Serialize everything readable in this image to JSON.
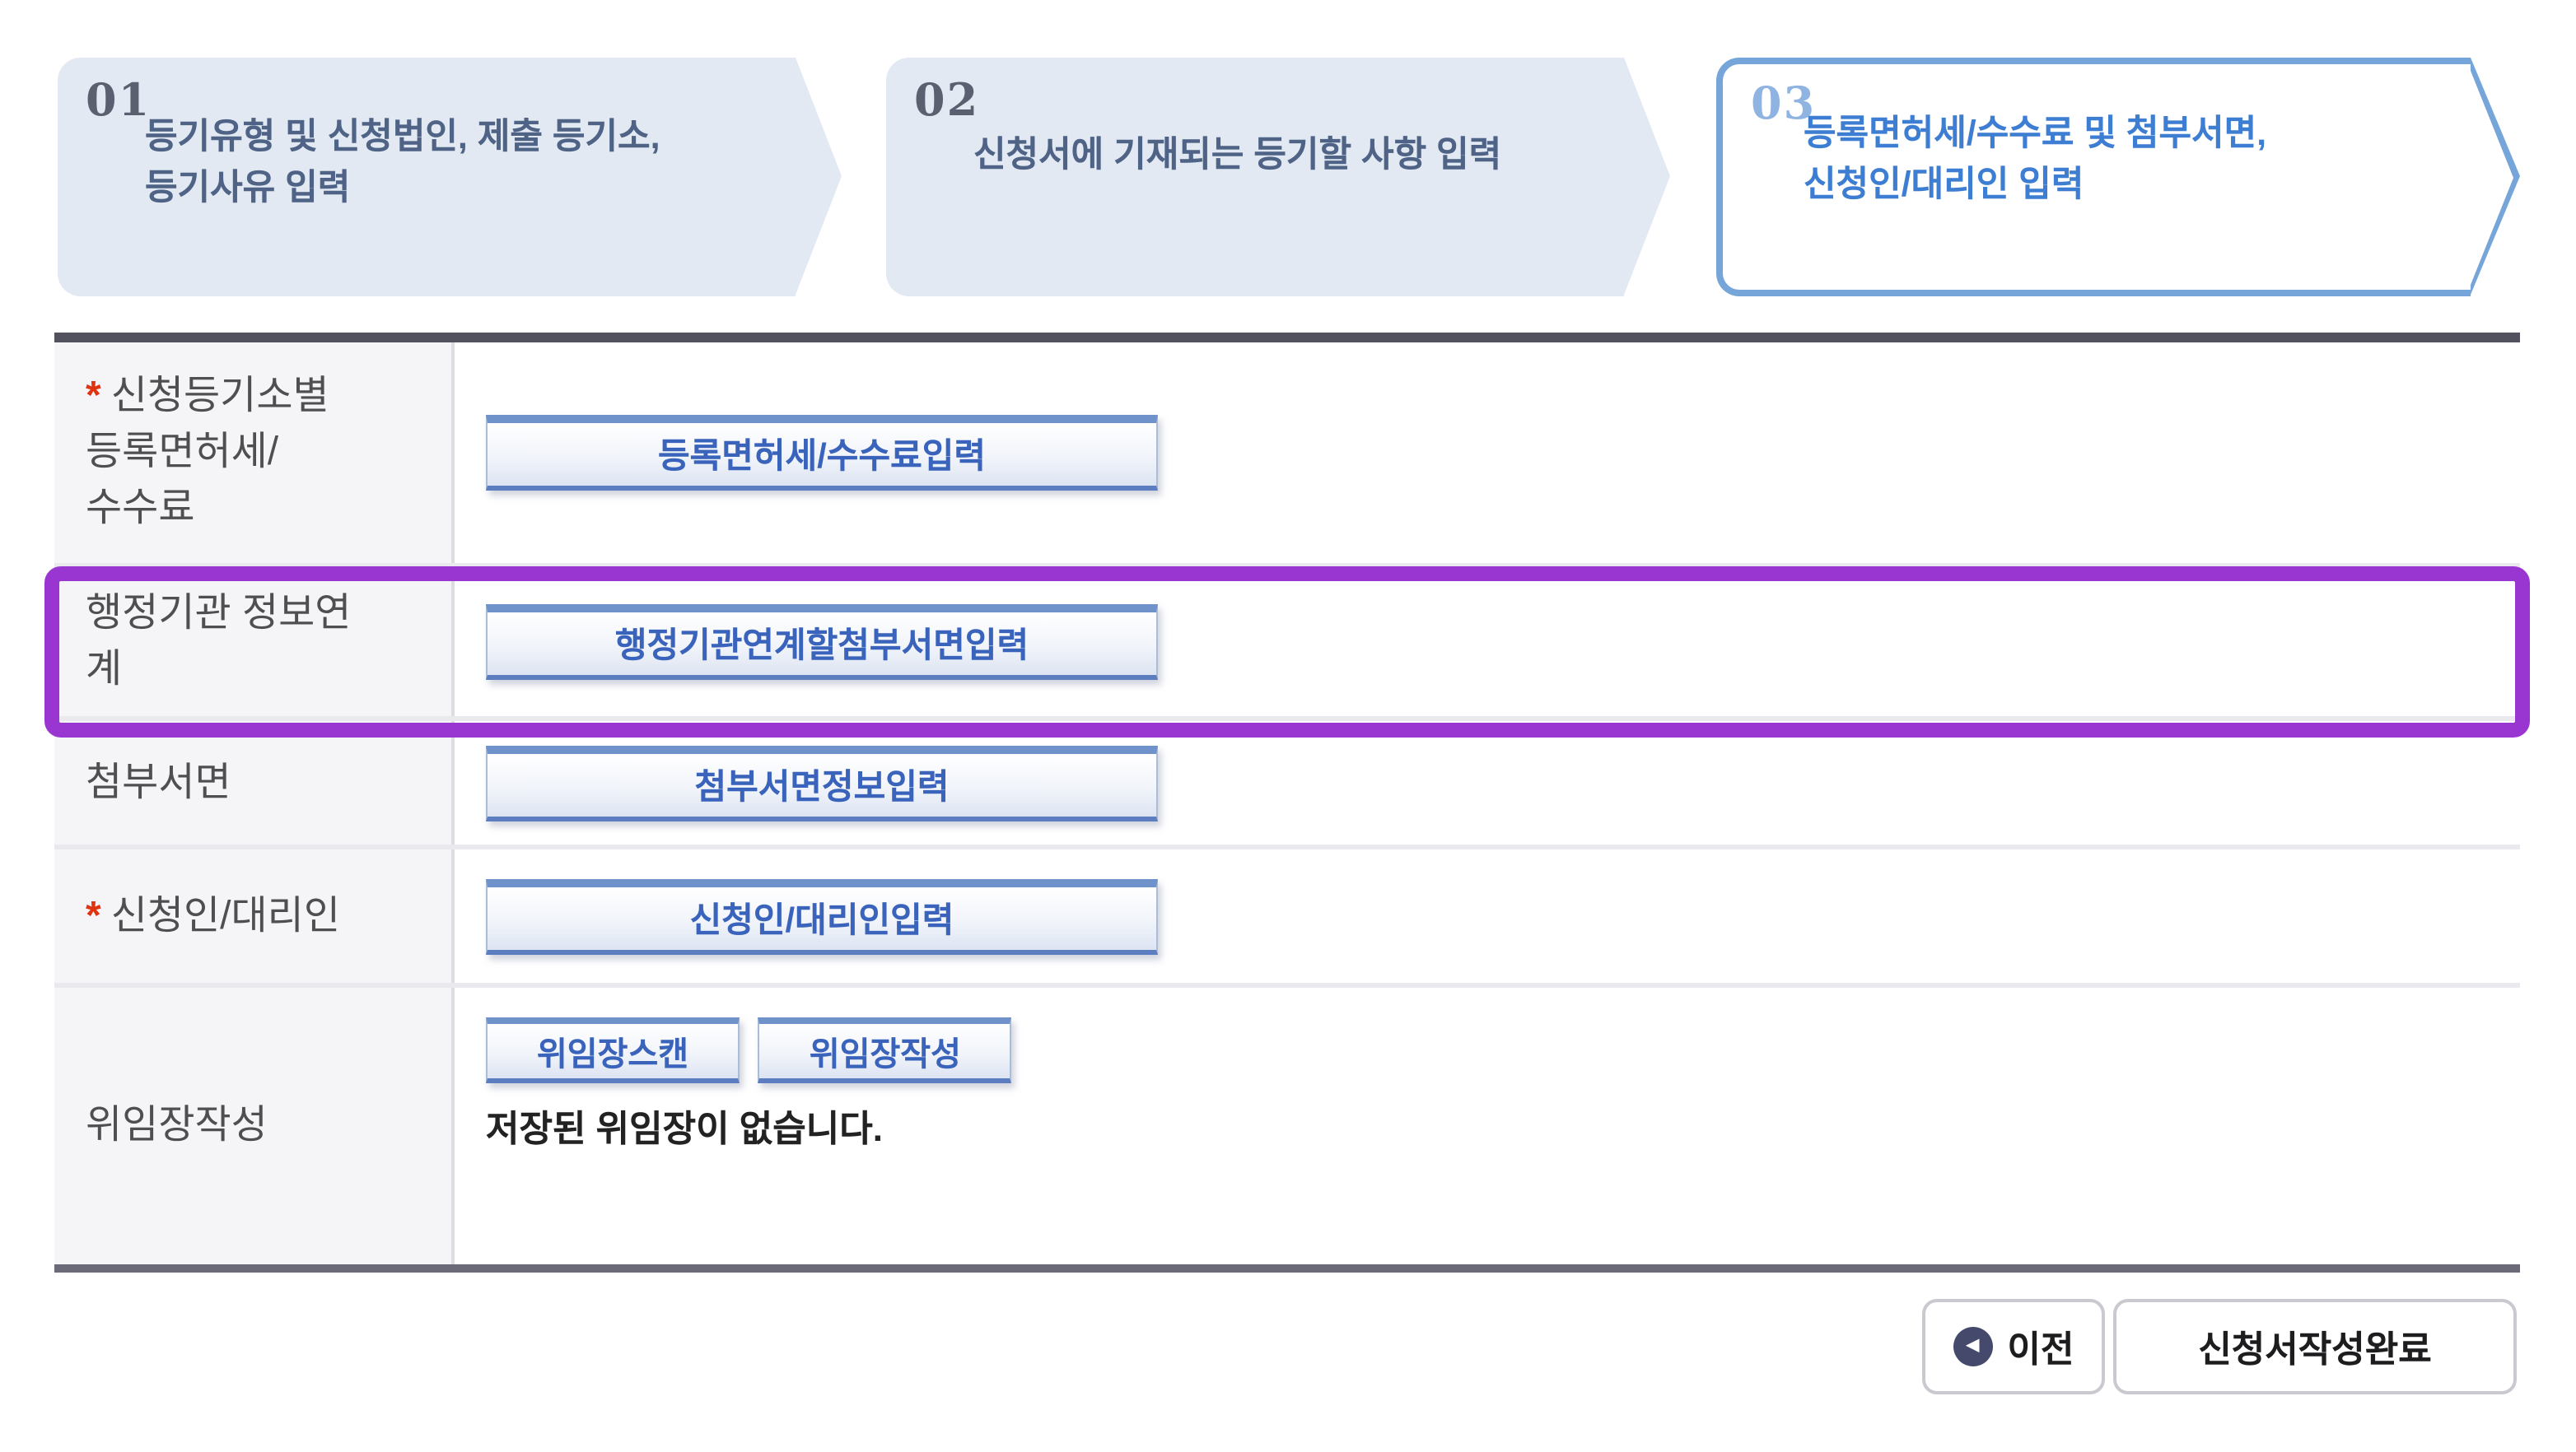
{
  "steps": [
    {
      "number": "01",
      "label": "등기유형 및 신청법인, 제출 등기소,\n등기사유 입력",
      "active": false
    },
    {
      "number": "02",
      "label": "신청서에 기재되는 등기할 사항 입력",
      "active": false
    },
    {
      "number": "03",
      "label": "등록면허세/수수료 및 첨부서면,\n신청인/대리인 입력",
      "active": true
    }
  ],
  "required_marker": "*",
  "form": {
    "rows": [
      {
        "label": "신청등기소별\n등록면허세/\n수수료",
        "required": true,
        "buttons": [
          "등록면허세/수수료입력"
        ]
      },
      {
        "label": "행정기관 정보연\n계",
        "required": false,
        "buttons": [
          "행정기관연계할첨부서면입력"
        ],
        "highlighted": true
      },
      {
        "label": "첨부서면",
        "required": false,
        "buttons": [
          "첨부서면정보입력"
        ]
      },
      {
        "label": "신청인/대리인",
        "required": true,
        "buttons": [
          "신청인/대리인입력"
        ]
      },
      {
        "label": "위임장작성",
        "required": false,
        "buttons": [
          "위임장스캔",
          "위임장작성"
        ],
        "note": "저장된 위임장이 없습니다."
      }
    ]
  },
  "footer": {
    "prev": "이전",
    "complete": "신청서작성완료"
  },
  "icons": {
    "prev_arrow": "◀"
  },
  "colors": {
    "step_inactive_bg": "#e2e9f2",
    "step_inactive_text": "#4e6385",
    "step_active_border": "#76a5d9",
    "step_active_text": "#3e7ed2",
    "table_top_border": "#52525e",
    "table_bottom_border": "#6a6a78",
    "label_cell_bg": "#f5f5f8",
    "button_text": "#3a64bb",
    "button_band": "#7092cb",
    "required": "#e0330f",
    "highlight": "#9936d2"
  }
}
